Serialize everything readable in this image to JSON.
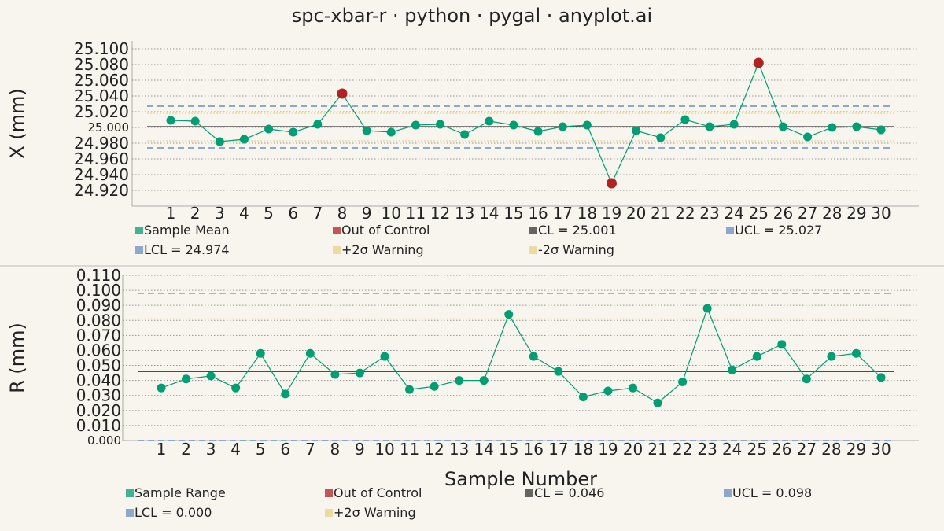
{
  "chart_data": [
    {
      "type": "line",
      "title": "spc-xbar-r · python · pygal · anyplot.ai",
      "ylabel": "X (mm)",
      "xlabel": "",
      "x": [
        1,
        2,
        3,
        4,
        5,
        6,
        7,
        8,
        9,
        10,
        11,
        12,
        13,
        14,
        15,
        16,
        17,
        18,
        19,
        20,
        21,
        22,
        23,
        24,
        25,
        26,
        27,
        28,
        29,
        30
      ],
      "ylim": [
        24.9,
        25.11
      ],
      "yticks": [
        "24.920",
        "24.940",
        "24.960",
        "24.980",
        "25.000",
        "25.020",
        "25.040",
        "25.060",
        "25.080",
        "25.100"
      ],
      "grid": true,
      "legend_position": "bottom",
      "series": [
        {
          "name": "Sample Mean",
          "color": "#009e73",
          "values": [
            25.009,
            25.008,
            24.982,
            24.985,
            24.998,
            24.994,
            25.004,
            25.043,
            24.996,
            24.994,
            25.003,
            25.004,
            24.991,
            25.008,
            25.003,
            24.995,
            25.001,
            25.003,
            24.929,
            24.996,
            24.987,
            25.01,
            25.001,
            25.004,
            25.082,
            25.001,
            24.988,
            25.0,
            25.001,
            24.997
          ]
        },
        {
          "name": "Out of Control",
          "color": "#b22222",
          "points": [
            [
              8,
              25.043
            ],
            [
              19,
              24.929
            ],
            [
              25,
              25.082
            ]
          ]
        },
        {
          "name": "CL = 25.001",
          "color": "#333333",
          "value": 25.001
        },
        {
          "name": "UCL = 25.027",
          "color": "#6b8ec2",
          "value": 25.027
        },
        {
          "name": "LCL = 24.974",
          "color": "#6b8ec2",
          "value": 24.974
        },
        {
          "name": "+2σ Warning",
          "color": "#e8d08a",
          "value": 25.018
        },
        {
          "name": "-2σ Warning",
          "color": "#e8d08a",
          "value": 24.983
        }
      ]
    },
    {
      "type": "line",
      "title": "",
      "ylabel": "R (mm)",
      "xlabel": "Sample Number",
      "x": [
        1,
        2,
        3,
        4,
        5,
        6,
        7,
        8,
        9,
        10,
        11,
        12,
        13,
        14,
        15,
        16,
        17,
        18,
        19,
        20,
        21,
        22,
        23,
        24,
        25,
        26,
        27,
        28,
        29,
        30
      ],
      "ylim": [
        0.0,
        0.11
      ],
      "yticks": [
        "0.000",
        "0.010",
        "0.020",
        "0.030",
        "0.040",
        "0.050",
        "0.060",
        "0.070",
        "0.080",
        "0.090",
        "0.100",
        "0.110"
      ],
      "grid": true,
      "legend_position": "bottom",
      "series": [
        {
          "name": "Sample Range",
          "color": "#009e73",
          "values": [
            0.035,
            0.041,
            0.043,
            0.035,
            0.058,
            0.031,
            0.058,
            0.044,
            0.045,
            0.056,
            0.034,
            0.036,
            0.04,
            0.04,
            0.084,
            0.056,
            0.046,
            0.029,
            0.033,
            0.035,
            0.025,
            0.039,
            0.088,
            0.047,
            0.056,
            0.064,
            0.041,
            0.056,
            0.058,
            0.042
          ]
        },
        {
          "name": "Out of Control",
          "color": "#b22222",
          "points": []
        },
        {
          "name": "CL = 0.046",
          "color": "#333333",
          "value": 0.046
        },
        {
          "name": "UCL = 0.098",
          "color": "#6b8ec2",
          "value": 0.098
        },
        {
          "name": "LCL = 0.000",
          "color": "#6b8ec2",
          "value": 0.0
        },
        {
          "name": "+2σ Warning",
          "color": "#e8d08a",
          "value": 0.081
        }
      ]
    }
  ]
}
